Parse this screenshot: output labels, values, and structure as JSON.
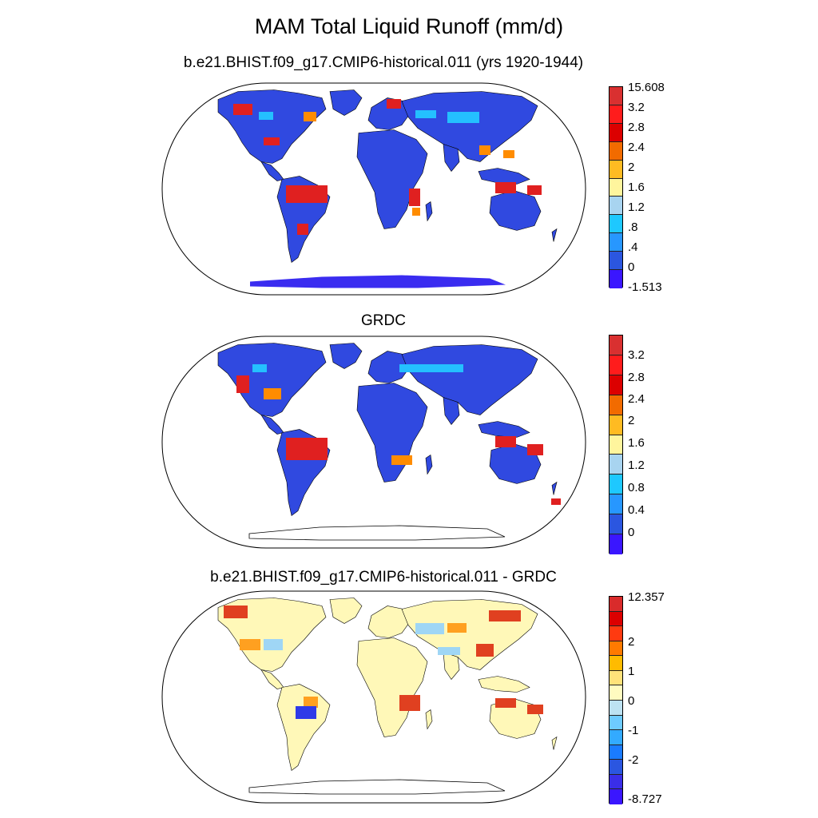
{
  "title": "MAM Total Liquid Runoff (mm/d)",
  "panels": [
    {
      "title": "b.e21.BHIST.f09_g17.CMIP6-historical.011 (yrs 1920-1944)",
      "colorbar": {
        "labels": [
          "15.608",
          "3.2",
          "2.8",
          "2.4",
          "2",
          "1.6",
          "1.2",
          ".8",
          ".4",
          "0",
          "-1.513"
        ],
        "colors": [
          "#d93030",
          "#ff1c1c",
          "#dc0000",
          "#f26b00",
          "#ffbb22",
          "#fff59d",
          "#a8d4f0",
          "#1ec8ff",
          "#2797ff",
          "#2b56e0",
          "#3a16ff"
        ]
      }
    },
    {
      "title": "GRDC",
      "colorbar": {
        "labels": [
          "3.2",
          "2.8",
          "2.4",
          "2",
          "1.6",
          "1.2",
          "0.8",
          "0.4",
          "0"
        ],
        "colors": [
          "#d93030",
          "#ff1c1c",
          "#dc0000",
          "#f26b00",
          "#ffbb22",
          "#fff59d",
          "#a8d4f0",
          "#1ec8ff",
          "#2797ff",
          "#2b56e0",
          "#3a16ff"
        ]
      }
    },
    {
      "title": "b.e21.BHIST.f09_g17.CMIP6-historical.011 - GRDC",
      "colorbar": {
        "labels": [
          "12.357",
          "2",
          "1",
          "0",
          "-1",
          "-2",
          "-8.727"
        ],
        "colors": [
          "#d92b2b",
          "#dc0000",
          "#ff3a10",
          "#ff7a00",
          "#ffbb00",
          "#ffe27a",
          "#fffbc0",
          "#bde2f2",
          "#6ecbff",
          "#33aaff",
          "#1a7bff",
          "#2b56e0",
          "#3a2ee8",
          "#3a16ff"
        ]
      }
    }
  ]
}
